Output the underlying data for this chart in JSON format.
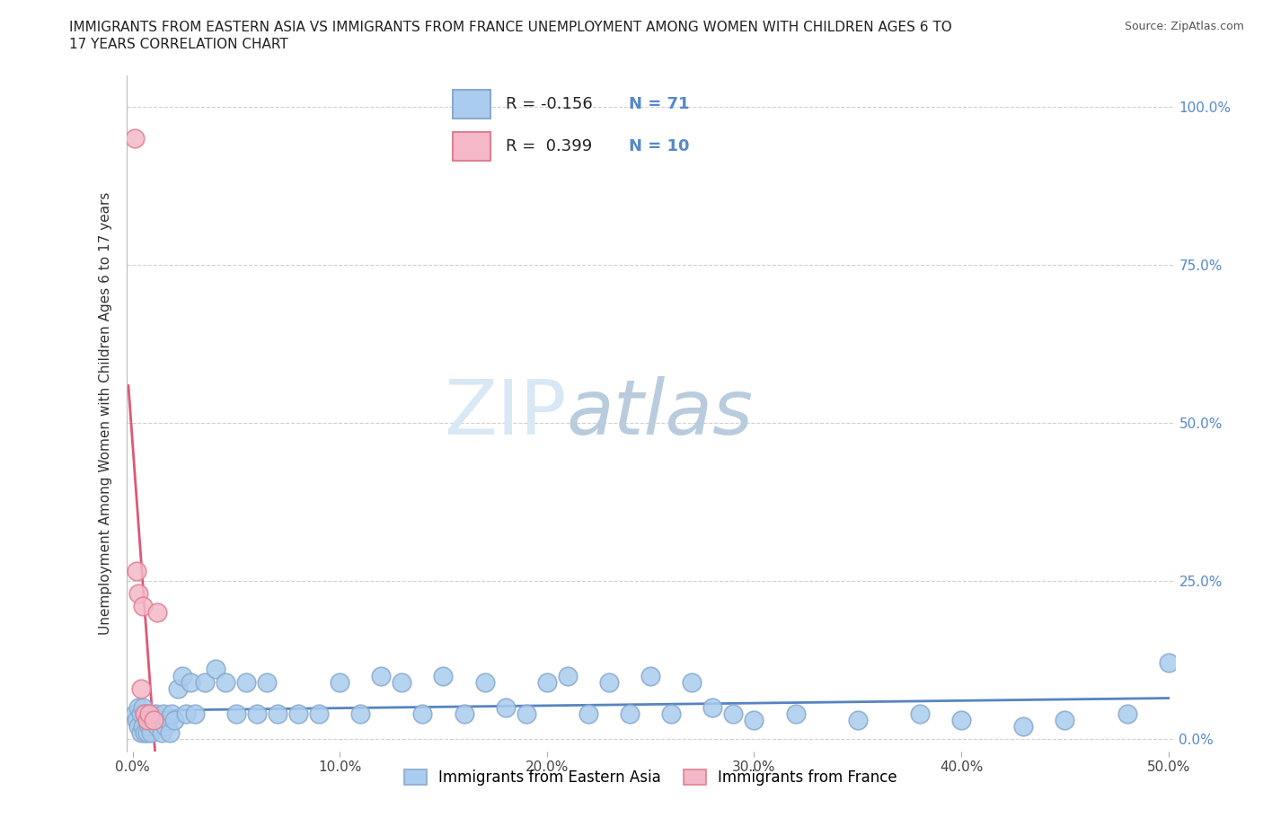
{
  "title_line1": "IMMIGRANTS FROM EASTERN ASIA VS IMMIGRANTS FROM FRANCE UNEMPLOYMENT AMONG WOMEN WITH CHILDREN AGES 6 TO",
  "title_line2": "17 YEARS CORRELATION CHART",
  "source": "Source: ZipAtlas.com",
  "ylabel": "Unemployment Among Women with Children Ages 6 to 17 years",
  "xlim": [
    -0.003,
    0.503
  ],
  "ylim": [
    -0.02,
    1.05
  ],
  "xticks": [
    0.0,
    0.1,
    0.2,
    0.3,
    0.4,
    0.5
  ],
  "xtick_labels": [
    "0.0%",
    "10.0%",
    "20.0%",
    "30.0%",
    "40.0%",
    "50.0%"
  ],
  "yticks": [
    0.0,
    0.25,
    0.5,
    0.75,
    1.0
  ],
  "ytick_labels_right": [
    "0.0%",
    "25.0%",
    "50.0%",
    "75.0%",
    "100.0%"
  ],
  "watermark_zip": "ZIP",
  "watermark_atlas": "atlas",
  "legend_labels": [
    "Immigrants from Eastern Asia",
    "Immigrants from France"
  ],
  "color_east_asia_face": "#aaccee",
  "color_east_asia_edge": "#88aacc",
  "color_france_face": "#f4b8c8",
  "color_france_edge": "#e08090",
  "trendline_east_asia_color": "#4477bb",
  "trendline_france_color": "#dd4466",
  "background_color": "#ffffff",
  "grid_color": "#cccccc",
  "east_asia_x": [
    0.001,
    0.002,
    0.003,
    0.003,
    0.004,
    0.004,
    0.005,
    0.005,
    0.006,
    0.006,
    0.007,
    0.007,
    0.008,
    0.008,
    0.009,
    0.009,
    0.01,
    0.011,
    0.012,
    0.013,
    0.014,
    0.015,
    0.016,
    0.017,
    0.018,
    0.019,
    0.02,
    0.022,
    0.024,
    0.026,
    0.028,
    0.03,
    0.035,
    0.04,
    0.045,
    0.05,
    0.055,
    0.06,
    0.065,
    0.07,
    0.08,
    0.09,
    0.1,
    0.11,
    0.12,
    0.13,
    0.14,
    0.15,
    0.16,
    0.17,
    0.18,
    0.19,
    0.2,
    0.21,
    0.22,
    0.23,
    0.24,
    0.25,
    0.26,
    0.27,
    0.28,
    0.29,
    0.3,
    0.32,
    0.35,
    0.38,
    0.4,
    0.43,
    0.45,
    0.48,
    0.5
  ],
  "east_asia_y": [
    0.04,
    0.03,
    0.05,
    0.02,
    0.04,
    0.01,
    0.05,
    0.02,
    0.04,
    0.01,
    0.03,
    0.01,
    0.04,
    0.02,
    0.03,
    0.01,
    0.03,
    0.04,
    0.02,
    0.03,
    0.01,
    0.04,
    0.02,
    0.03,
    0.01,
    0.04,
    0.03,
    0.08,
    0.1,
    0.04,
    0.09,
    0.04,
    0.09,
    0.11,
    0.09,
    0.04,
    0.09,
    0.04,
    0.09,
    0.04,
    0.04,
    0.04,
    0.09,
    0.04,
    0.1,
    0.09,
    0.04,
    0.1,
    0.04,
    0.09,
    0.05,
    0.04,
    0.09,
    0.1,
    0.04,
    0.09,
    0.04,
    0.1,
    0.04,
    0.09,
    0.05,
    0.04,
    0.03,
    0.04,
    0.03,
    0.04,
    0.03,
    0.02,
    0.03,
    0.04,
    0.12
  ],
  "france_x": [
    0.001,
    0.002,
    0.003,
    0.004,
    0.005,
    0.006,
    0.007,
    0.008,
    0.01,
    0.012
  ],
  "france_y": [
    0.95,
    0.265,
    0.23,
    0.08,
    0.21,
    0.04,
    0.03,
    0.04,
    0.03,
    0.2
  ],
  "france_trendline_x0": -0.002,
  "france_trendline_x1": 0.018,
  "east_asia_trendline_x0": 0.0,
  "east_asia_trendline_x1": 0.5
}
